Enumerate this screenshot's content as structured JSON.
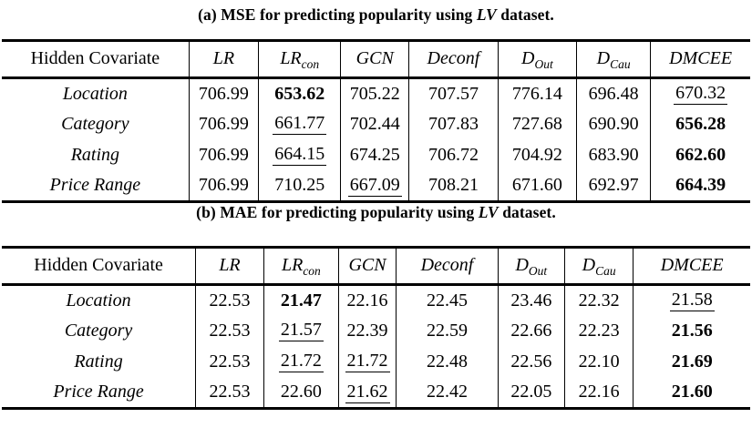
{
  "page": {
    "background": "#ffffff",
    "text_color": "#000000"
  },
  "columns": [
    {
      "label": "Hidden Covariate",
      "sub": ""
    },
    {
      "label": "LR",
      "sub": ""
    },
    {
      "label": "LR",
      "sub": "con"
    },
    {
      "label": "GCN",
      "sub": ""
    },
    {
      "label": "Deconf",
      "sub": ""
    },
    {
      "label": "D",
      "sub": "Out"
    },
    {
      "label": "D",
      "sub": "Cau"
    },
    {
      "label": "DMCEE",
      "sub": ""
    }
  ],
  "tables": [
    {
      "id": "mse-lv",
      "caption": {
        "prefix": "(a) ",
        "before": "MSE for predicting popularity using ",
        "emph": "LV",
        "after": " dataset."
      },
      "rows": [
        {
          "label": "Location",
          "cells": [
            {
              "v": "706.99"
            },
            {
              "v": "653.62",
              "style": "bold"
            },
            {
              "v": "705.22"
            },
            {
              "v": "707.57"
            },
            {
              "v": "776.14"
            },
            {
              "v": "696.48"
            },
            {
              "v": "670.32",
              "style": "underline"
            }
          ]
        },
        {
          "label": "Category",
          "cells": [
            {
              "v": "706.99"
            },
            {
              "v": "661.77",
              "style": "underline"
            },
            {
              "v": "702.44"
            },
            {
              "v": "707.83"
            },
            {
              "v": "727.68"
            },
            {
              "v": "690.90"
            },
            {
              "v": "656.28",
              "style": "bold"
            }
          ]
        },
        {
          "label": "Rating",
          "cells": [
            {
              "v": "706.99"
            },
            {
              "v": "664.15",
              "style": "underline"
            },
            {
              "v": "674.25"
            },
            {
              "v": "706.72"
            },
            {
              "v": "704.92"
            },
            {
              "v": "683.90"
            },
            {
              "v": "662.60",
              "style": "bold"
            }
          ]
        },
        {
          "label": "Price Range",
          "cells": [
            {
              "v": "706.99"
            },
            {
              "v": "710.25"
            },
            {
              "v": "667.09",
              "style": "underline"
            },
            {
              "v": "708.21"
            },
            {
              "v": "671.60"
            },
            {
              "v": "692.97"
            },
            {
              "v": "664.39",
              "style": "bold"
            }
          ]
        }
      ]
    },
    {
      "id": "mae-lv",
      "caption": {
        "prefix": "(b) ",
        "before": "MAE for predicting popularity using ",
        "emph": "LV",
        "after": " dataset."
      },
      "rows": [
        {
          "label": "Location",
          "cells": [
            {
              "v": "22.53"
            },
            {
              "v": "21.47",
              "style": "bold"
            },
            {
              "v": "22.16"
            },
            {
              "v": "22.45"
            },
            {
              "v": "23.46"
            },
            {
              "v": "22.32"
            },
            {
              "v": "21.58",
              "style": "underline"
            }
          ]
        },
        {
          "label": "Category",
          "cells": [
            {
              "v": "22.53"
            },
            {
              "v": "21.57",
              "style": "underline"
            },
            {
              "v": "22.39"
            },
            {
              "v": "22.59"
            },
            {
              "v": "22.66"
            },
            {
              "v": "22.23"
            },
            {
              "v": "21.56",
              "style": "bold"
            }
          ]
        },
        {
          "label": "Rating",
          "cells": [
            {
              "v": "22.53"
            },
            {
              "v": "21.72",
              "style": "underline"
            },
            {
              "v": "21.72",
              "style": "underline"
            },
            {
              "v": "22.48"
            },
            {
              "v": "22.56"
            },
            {
              "v": "22.10"
            },
            {
              "v": "21.69",
              "style": "bold"
            }
          ]
        },
        {
          "label": "Price Range",
          "cells": [
            {
              "v": "22.53"
            },
            {
              "v": "22.60"
            },
            {
              "v": "21.62",
              "style": "underline"
            },
            {
              "v": "22.42"
            },
            {
              "v": "22.05"
            },
            {
              "v": "22.16"
            },
            {
              "v": "21.60",
              "style": "bold"
            }
          ]
        }
      ]
    }
  ]
}
